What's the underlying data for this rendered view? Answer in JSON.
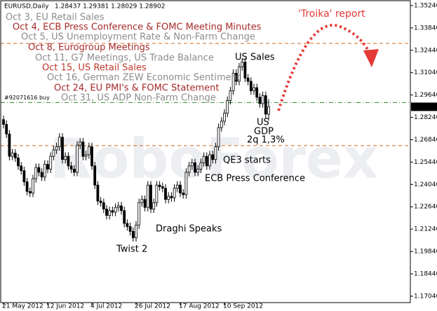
{
  "chart_data": {
    "type": "candlestick",
    "symbol": "EURUSD,Daily",
    "ohlc_label": "1.28437 1.29381 1.28029 1.28902",
    "watermark": "RoboForex",
    "categories": [
      "21 May 2012",
      null,
      null,
      null,
      null,
      null,
      null,
      null,
      null,
      null,
      null,
      null,
      null,
      null,
      null,
      "12 Jun 2012",
      null,
      null,
      null,
      null,
      null,
      null,
      null,
      null,
      null,
      null,
      null,
      null,
      null,
      null,
      "4 Jul 2012",
      null,
      null,
      null,
      null,
      null,
      null,
      null,
      null,
      null,
      null,
      null,
      null,
      null,
      null,
      "26 Jul 2012",
      null,
      null,
      null,
      null,
      null,
      null,
      null,
      null,
      null,
      null,
      null,
      null,
      null,
      null,
      "17 Aug 2012",
      null,
      null,
      null,
      null,
      null,
      null,
      null,
      null,
      null,
      null,
      null,
      null,
      null,
      null,
      "10 Sep 2012",
      null,
      null,
      null,
      null,
      null,
      null,
      null,
      null,
      null,
      null,
      null,
      null,
      null,
      null,
      null
    ],
    "open": [
      1.281,
      1.278,
      1.272,
      1.258,
      1.26,
      1.257,
      1.252,
      1.249,
      1.242,
      1.236,
      1.235,
      1.244,
      1.251,
      1.248,
      1.245,
      1.253,
      1.25,
      1.258,
      1.262,
      1.264,
      1.27,
      1.256,
      1.258,
      1.252,
      1.25,
      1.248,
      1.265,
      1.267,
      1.258,
      1.259,
      1.264,
      1.252,
      1.24,
      1.23,
      1.229,
      1.225,
      1.221,
      1.224,
      1.223,
      1.226,
      1.227,
      1.224,
      1.216,
      1.214,
      1.211,
      1.207,
      1.215,
      1.229,
      1.231,
      1.226,
      1.24,
      1.225,
      1.229,
      1.24,
      1.239,
      1.238,
      1.231,
      1.233,
      1.232,
      1.238,
      1.24,
      1.235,
      1.234,
      1.248,
      1.252,
      1.254,
      1.248,
      1.25,
      1.254,
      1.258,
      1.252,
      1.259,
      1.256,
      1.264,
      1.276,
      1.28,
      1.285,
      1.293,
      1.299,
      1.31,
      1.305,
      1.314,
      1.317,
      1.307,
      1.305,
      1.299,
      1.301,
      1.295,
      1.291,
      1.296,
      1.28437
    ],
    "high": [
      1.2835,
      1.2805,
      1.2745,
      1.2625,
      1.2625,
      1.2595,
      1.2545,
      1.2515,
      1.2445,
      1.2385,
      1.2465,
      1.2535,
      1.2535,
      1.2505,
      1.2555,
      1.2555,
      1.2605,
      1.2645,
      1.2665,
      1.2725,
      1.2725,
      1.2605,
      1.2605,
      1.2545,
      1.2525,
      1.2675,
      1.2695,
      1.2695,
      1.2615,
      1.2665,
      1.2665,
      1.2545,
      1.2425,
      1.2325,
      1.2315,
      1.2275,
      1.2265,
      1.2265,
      1.2285,
      1.2295,
      1.2295,
      1.2265,
      1.2185,
      1.2165,
      1.2135,
      1.2175,
      1.2315,
      1.2335,
      1.2335,
      1.2425,
      1.2425,
      1.2315,
      1.2425,
      1.2425,
      1.2415,
      1.2405,
      1.2355,
      1.2355,
      1.2405,
      1.2425,
      1.2425,
      1.2375,
      1.2505,
      1.2545,
      1.2565,
      1.2565,
      1.2525,
      1.2565,
      1.2605,
      1.2605,
      1.2615,
      1.2615,
      1.2665,
      1.2785,
      1.2825,
      1.2875,
      1.2955,
      1.3015,
      1.3125,
      1.3125,
      1.3165,
      1.3195,
      1.3195,
      1.3095,
      1.3075,
      1.3035,
      1.3035,
      1.2975,
      1.2985,
      1.2985,
      1.29381
    ],
    "low": [
      1.2755,
      1.2695,
      1.2555,
      1.2555,
      1.2545,
      1.2495,
      1.2465,
      1.2395,
      1.2335,
      1.2325,
      1.2325,
      1.2415,
      1.2455,
      1.2425,
      1.2425,
      1.2475,
      1.2475,
      1.2555,
      1.2595,
      1.2615,
      1.2535,
      1.2535,
      1.2495,
      1.2475,
      1.2455,
      1.2455,
      1.2625,
      1.2555,
      1.2555,
      1.2565,
      1.2495,
      1.2375,
      1.2275,
      1.2265,
      1.2225,
      1.2185,
      1.2185,
      1.2205,
      1.2205,
      1.2235,
      1.2215,
      1.2135,
      1.2115,
      1.2085,
      1.2045,
      1.2045,
      1.2125,
      1.2265,
      1.2235,
      1.2235,
      1.2225,
      1.2225,
      1.2265,
      1.2365,
      1.2355,
      1.2285,
      1.2285,
      1.2295,
      1.2295,
      1.2355,
      1.2325,
      1.2315,
      1.2315,
      1.2455,
      1.2495,
      1.2455,
      1.2455,
      1.2475,
      1.2515,
      1.2495,
      1.2495,
      1.2535,
      1.2535,
      1.2615,
      1.2735,
      1.2775,
      1.2825,
      1.2905,
      1.2965,
      1.3025,
      1.3025,
      1.3115,
      1.3045,
      1.3025,
      1.2965,
      1.2965,
      1.2925,
      1.2885,
      1.2885,
      1.282,
      1.28029
    ],
    "close": [
      1.278,
      1.272,
      1.258,
      1.26,
      1.257,
      1.252,
      1.249,
      1.242,
      1.236,
      1.235,
      1.244,
      1.251,
      1.248,
      1.245,
      1.253,
      1.25,
      1.258,
      1.262,
      1.264,
      1.27,
      1.256,
      1.258,
      1.252,
      1.25,
      1.248,
      1.265,
      1.267,
      1.258,
      1.259,
      1.264,
      1.252,
      1.24,
      1.23,
      1.229,
      1.225,
      1.221,
      1.224,
      1.223,
      1.226,
      1.227,
      1.224,
      1.216,
      1.214,
      1.211,
      1.207,
      1.215,
      1.229,
      1.231,
      1.226,
      1.24,
      1.225,
      1.229,
      1.24,
      1.239,
      1.238,
      1.231,
      1.233,
      1.232,
      1.238,
      1.24,
      1.235,
      1.234,
      1.248,
      1.252,
      1.254,
      1.248,
      1.25,
      1.254,
      1.258,
      1.252,
      1.259,
      1.256,
      1.264,
      1.276,
      1.28,
      1.285,
      1.293,
      1.299,
      1.31,
      1.305,
      1.314,
      1.317,
      1.307,
      1.305,
      1.299,
      1.301,
      1.295,
      1.291,
      1.296,
      1.2844,
      1.28902
    ],
    "ylim": [
      1.1664,
      1.3559
    ],
    "yticks": [
      {
        "value": 1.3524,
        "label": "1.35240"
      },
      {
        "value": 1.3384,
        "label": "1.33840"
      },
      {
        "value": 1.3244,
        "label": "1.32440"
      },
      {
        "value": 1.3104,
        "label": "1.31040"
      },
      {
        "value": 1.2964,
        "label": "1.29640"
      },
      {
        "value": 1.2824,
        "label": "1.28240"
      },
      {
        "value": 1.2684,
        "label": "1.26840"
      },
      {
        "value": 1.2544,
        "label": "1.25440"
      },
      {
        "value": 1.2404,
        "label": "1.24040"
      },
      {
        "value": 1.2264,
        "label": "1.22640"
      },
      {
        "value": 1.2124,
        "label": "1.21240"
      },
      {
        "value": 1.1984,
        "label": "1.19840"
      },
      {
        "value": 1.1844,
        "label": "1.18440"
      },
      {
        "value": 1.1704,
        "label": "1.17040"
      }
    ],
    "current_price": 1.28902,
    "hlines": [
      {
        "value": 1.3287,
        "color": "#d2691e",
        "label": null
      },
      {
        "value": 1.2917,
        "color": "#2e8b2e",
        "label": "#92071616 buy"
      },
      {
        "value": 1.2647,
        "color": "#d2691e",
        "label": null
      }
    ],
    "events": [
      {
        "text": "Oct 3, EU Retail Sales",
        "color": "#8c8c8c"
      },
      {
        "text": "Oct 4, ECB Press Conference & FOMC Meeting Minutes",
        "color": "#a52a2a"
      },
      {
        "text": "Oct 5, US Unemployment Rate & Non-Farm Change",
        "color": "#8c8c8c"
      },
      {
        "text": "Oct 8, Eurogroup Meetings",
        "color": "#a52a2a"
      },
      {
        "text": "Oct 11, G7 Meetings, US Trade Balance",
        "color": "#8c8c8c"
      },
      {
        "text": "Oct 15, US Retail Sales",
        "color": "#c0392b"
      },
      {
        "text": "Oct 16, German ZEW Economic Sentiment",
        "color": "#8c8c8c"
      },
      {
        "text": "Oct 24, EU PMI's & FOMC Statement",
        "color": "#a52a2a"
      },
      {
        "text": "Oct 31, US ADP Non-Farm Change",
        "color": "#8c8c8c"
      }
    ],
    "annotations": [
      "US Sales",
      "US",
      "GDP",
      "2q 1,3%",
      "QE3 starts",
      "ECB Press Conference",
      "Draghi Speaks",
      "Twist 2"
    ],
    "forecast_label": "'Troika' report"
  }
}
